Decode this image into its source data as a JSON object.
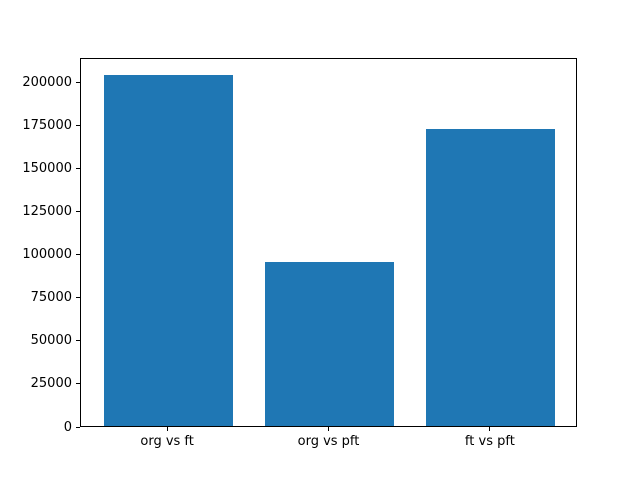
{
  "figure": {
    "background_color": "#ffffff",
    "spine_color": "#000000",
    "tick_label_color": "#000000"
  },
  "chart_data": {
    "type": "bar",
    "title": "",
    "xlabel": "",
    "ylabel": "",
    "categories": [
      "org vs ft",
      "org vs pft",
      "ft vs pft"
    ],
    "values": [
      204000,
      95000,
      172500
    ],
    "yticks": [
      0,
      25000,
      50000,
      75000,
      100000,
      125000,
      150000,
      175000,
      200000
    ],
    "ytick_labels": [
      "0",
      "25000",
      "50000",
      "75000",
      "100000",
      "125000",
      "150000",
      "175000",
      "200000"
    ],
    "ylim": [
      0,
      214200
    ],
    "bar_color": "#1f77b4",
    "bar_relative_width": 0.8,
    "grid": false,
    "legend": null
  }
}
